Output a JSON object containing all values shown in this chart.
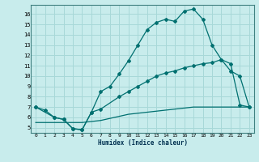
{
  "xlabel": "Humidex (Indice chaleur)",
  "bg_color": "#c8ecec",
  "line_color": "#007070",
  "grid_color": "#a8d8d8",
  "xlim": [
    -0.5,
    23.5
  ],
  "ylim": [
    4.5,
    16.9
  ],
  "xticks": [
    0,
    1,
    2,
    3,
    4,
    5,
    6,
    7,
    8,
    9,
    10,
    11,
    12,
    13,
    14,
    15,
    16,
    17,
    18,
    19,
    20,
    21,
    22,
    23
  ],
  "yticks": [
    5,
    6,
    7,
    8,
    9,
    10,
    11,
    12,
    13,
    14,
    15,
    16
  ],
  "line1_x": [
    0,
    1,
    2,
    3,
    4,
    5,
    6,
    7,
    8,
    9,
    10,
    11,
    12,
    13,
    14,
    15,
    16,
    17,
    18,
    19,
    20,
    21,
    22,
    23
  ],
  "line1_y": [
    7.0,
    6.7,
    6.0,
    5.8,
    4.9,
    4.8,
    6.5,
    8.5,
    9.0,
    10.2,
    11.5,
    13.0,
    14.5,
    15.2,
    15.5,
    15.3,
    16.3,
    16.5,
    15.5,
    13.0,
    11.6,
    10.5,
    10.0,
    7.0
  ],
  "line2_x": [
    0,
    2,
    3,
    4,
    5,
    6,
    7,
    9,
    10,
    11,
    12,
    13,
    14,
    15,
    16,
    17,
    18,
    19,
    20,
    21,
    22,
    23
  ],
  "line2_y": [
    7.0,
    6.0,
    5.8,
    4.9,
    4.8,
    6.5,
    6.8,
    8.0,
    8.5,
    9.0,
    9.5,
    10.0,
    10.3,
    10.5,
    10.8,
    11.0,
    11.2,
    11.3,
    11.6,
    11.2,
    7.2,
    7.0
  ],
  "line3_x": [
    0,
    1,
    2,
    3,
    4,
    5,
    6,
    7,
    8,
    9,
    10,
    11,
    12,
    13,
    14,
    15,
    16,
    17,
    18,
    19,
    20,
    21,
    22,
    23
  ],
  "line3_y": [
    5.5,
    5.5,
    5.5,
    5.5,
    5.5,
    5.5,
    5.6,
    5.7,
    5.9,
    6.1,
    6.3,
    6.4,
    6.5,
    6.6,
    6.7,
    6.8,
    6.9,
    7.0,
    7.0,
    7.0,
    7.0,
    7.0,
    7.0,
    7.0
  ]
}
